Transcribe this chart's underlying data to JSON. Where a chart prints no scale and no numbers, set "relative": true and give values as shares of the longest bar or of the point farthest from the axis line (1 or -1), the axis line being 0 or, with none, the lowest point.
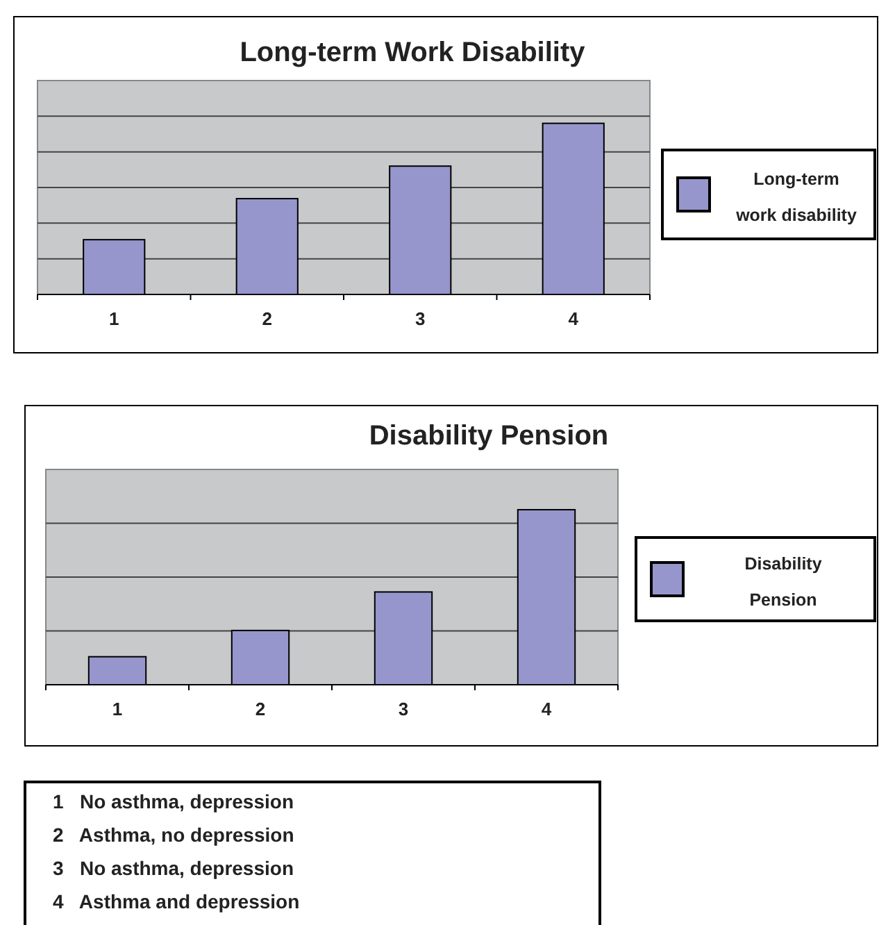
{
  "chart_data": [
    {
      "type": "bar",
      "title": "Long-term Work Disability",
      "categories": [
        "1",
        "2",
        "3",
        "4"
      ],
      "relative": true,
      "grid": "y",
      "legend": "right",
      "series": [
        {
          "name": "Long-term work disability",
          "color": "#9696cc",
          "values": [
            0.32,
            0.56,
            0.75,
            1
          ]
        }
      ]
    },
    {
      "type": "bar",
      "title": "Disability Pension",
      "categories": [
        "1",
        "2",
        "3",
        "4"
      ],
      "relative": true,
      "grid": "y",
      "legend": "right",
      "series": [
        {
          "name": "Disability Pension",
          "color": "#9696cc",
          "values": [
            0.16,
            0.31,
            0.53,
            1
          ]
        }
      ]
    },
    {
      "type": "other",
      "annotations": [
        "1   No asthma, depression",
        "2   Asthma, no depression",
        "3   No asthma, depression",
        "4   Asthma and depression"
      ]
    }
  ]
}
